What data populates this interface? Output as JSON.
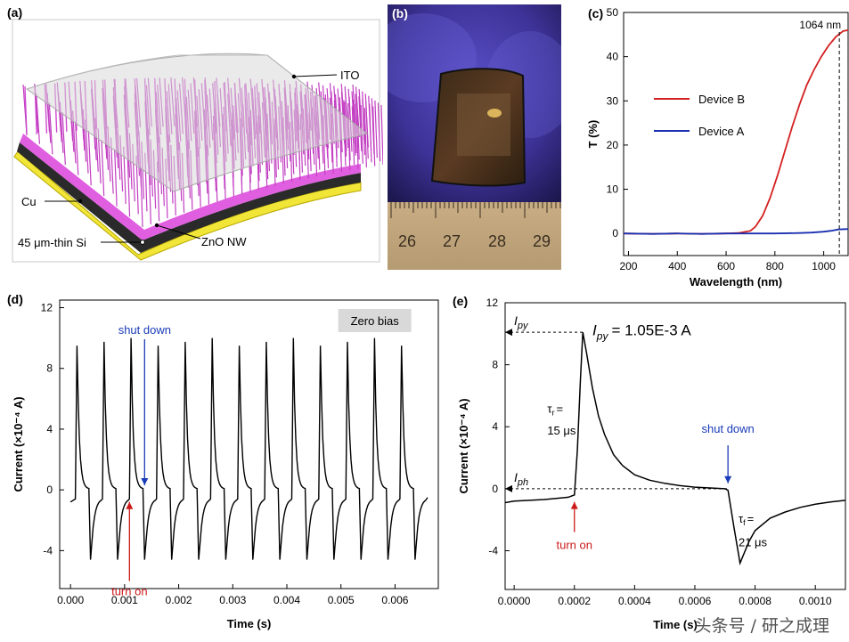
{
  "panel_a": {
    "label": "(a)",
    "annotations": {
      "ito": "ITO",
      "cu": "Cu",
      "si": "45 μm-thin Si",
      "zno": "ZnO NW"
    }
  },
  "panel_b": {
    "label": "(b)",
    "ruler_numbers": [
      "26",
      "27",
      "28",
      "29"
    ]
  },
  "panel_c": {
    "label": "(c)",
    "marker_label": "1064 nm",
    "chart_data": {
      "type": "line",
      "xlabel": "Wavelength (nm)",
      "ylabel": "T (%)",
      "xlim": [
        180,
        1100
      ],
      "ylim": [
        -5,
        50
      ],
      "xticks": [
        200,
        400,
        600,
        800,
        1000
      ],
      "yticks": [
        0,
        10,
        20,
        30,
        40,
        50
      ],
      "marker_x": 1064,
      "series": [
        {
          "name": "Device B",
          "color": "#d42020",
          "x": [
            180,
            300,
            400,
            500,
            600,
            650,
            700,
            720,
            750,
            780,
            810,
            840,
            870,
            900,
            930,
            960,
            990,
            1020,
            1050,
            1080,
            1100
          ],
          "y": [
            0.0,
            -0.1,
            0.0,
            -0.1,
            0.0,
            0.1,
            0.6,
            1.5,
            4.0,
            8.0,
            13.0,
            18.5,
            24.0,
            29.0,
            33.5,
            37.0,
            40.0,
            42.5,
            44.5,
            45.8,
            46.0
          ]
        },
        {
          "name": "Device A",
          "color": "#1a2fb0",
          "x": [
            180,
            300,
            400,
            500,
            600,
            700,
            800,
            900,
            950,
            1000,
            1030,
            1060,
            1100
          ],
          "y": [
            0.0,
            -0.1,
            0.0,
            -0.1,
            0.0,
            0.0,
            0.0,
            0.1,
            0.2,
            0.4,
            0.6,
            0.9,
            1.0
          ]
        }
      ]
    }
  },
  "panel_d": {
    "label": "(d)",
    "badge": "Zero bias",
    "annotation_shutdown": "shut down",
    "annotation_turnon": "turn on",
    "chart_data": {
      "type": "line",
      "xlabel": "Time (s)",
      "ylabel": "Current (×10⁻⁴ A)",
      "xlim": [
        -0.0002,
        0.0068
      ],
      "ylim": [
        -6.5,
        12.5
      ],
      "xticks": [
        0.0,
        0.001,
        0.002,
        0.003,
        0.004,
        0.005,
        0.006
      ],
      "xtick_labels": [
        "0.000",
        "0.001",
        "0.002",
        "0.003",
        "0.004",
        "0.005",
        "0.006"
      ],
      "yticks": [
        -4,
        0,
        4,
        8,
        12
      ],
      "period": 0.0005,
      "first_turn_on": 0.0001,
      "peak": 10.0,
      "trough": -4.6,
      "cycles": 13
    }
  },
  "panel_e": {
    "label": "(e)",
    "ipy_label": "I",
    "ipy_sub": "py",
    "iph_label": "I",
    "iph_sub": "ph",
    "ipy_value": "= 1.05E-3 A",
    "tau_r": "τ",
    "tau_r_sub": "r",
    "tau_r_eq": "=",
    "tau_r_value": "15 μs",
    "tau_f": "τ",
    "tau_f_sub": "f",
    "tau_f_eq": "=",
    "tau_f_value": "21 μs",
    "annotation_shutdown": "shut down",
    "annotation_turnon": "turn on",
    "chart_data": {
      "type": "line",
      "xlabel": "Time (s)",
      "ylabel": "Current (×10⁻⁴ A)",
      "xlim": [
        -3e-05,
        0.0011
      ],
      "ylim": [
        -6.5,
        12
      ],
      "xticks": [
        0.0,
        0.0002,
        0.0004,
        0.0006,
        0.0008,
        0.001
      ],
      "xtick_labels": [
        "0.0000",
        "0.0002",
        "0.0004",
        "0.0006",
        "0.0008",
        "0.0010"
      ],
      "yticks": [
        -4,
        0,
        4,
        8,
        12
      ],
      "x": [
        -3e-05,
        0.0,
        0.0001,
        0.00018,
        0.0002,
        0.00021,
        0.00022,
        0.000228,
        0.00024,
        0.00026,
        0.00028,
        0.0003,
        0.00033,
        0.00036,
        0.0004,
        0.00045,
        0.0005,
        0.00055,
        0.0006,
        0.00065,
        0.0007,
        0.00071,
        0.00073,
        0.00075,
        0.00078,
        0.0008,
        0.00085,
        0.0009,
        0.00095,
        0.001,
        0.00105,
        0.0011
      ],
      "y": [
        -0.9,
        -0.8,
        -0.7,
        -0.55,
        -0.4,
        2.5,
        7.0,
        10.1,
        8.8,
        6.5,
        4.7,
        3.5,
        2.2,
        1.5,
        0.9,
        0.55,
        0.35,
        0.2,
        0.1,
        0.05,
        0.0,
        -0.1,
        -2.5,
        -4.8,
        -3.4,
        -2.7,
        -1.9,
        -1.5,
        -1.2,
        -1.0,
        -0.85,
        -0.75
      ]
    }
  },
  "watermark": "头条号 / 研之成理"
}
